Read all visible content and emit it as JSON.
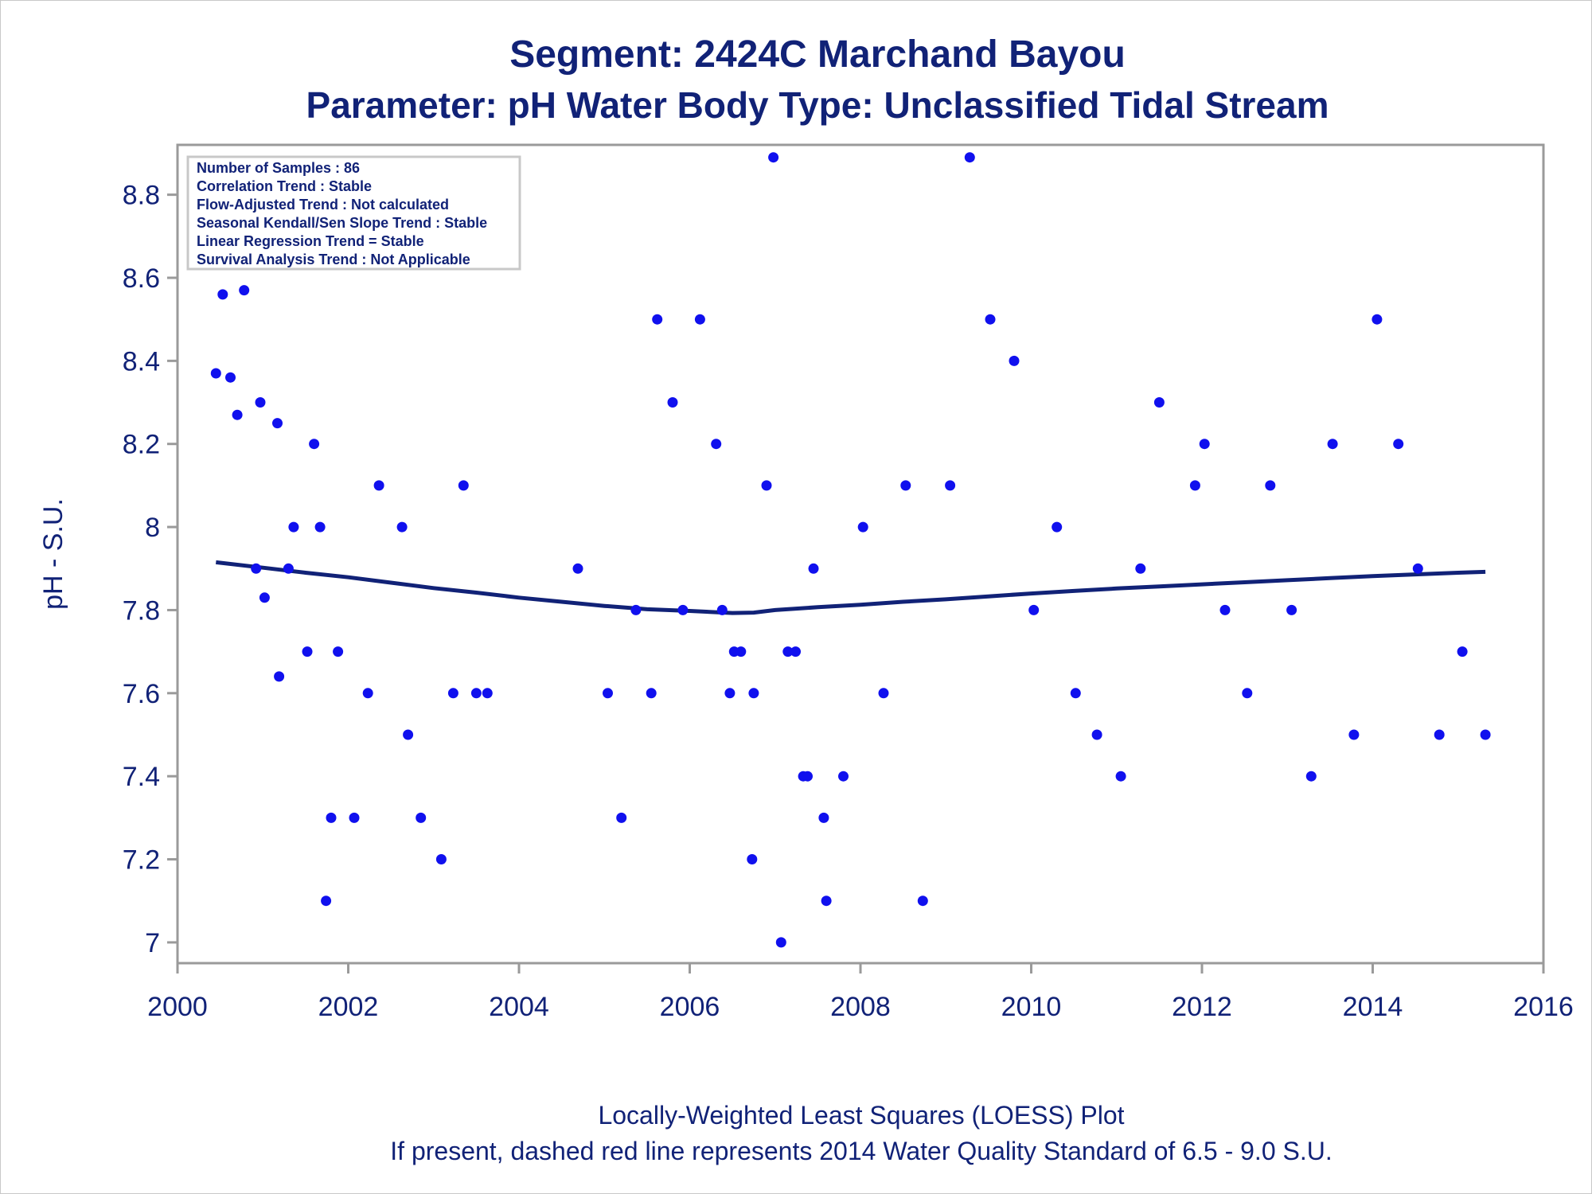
{
  "header": {
    "title": "Segment: 2424C  Marchand Bayou",
    "subtitle": "Parameter: pH   Water Body Type: Unclassified Tidal Stream"
  },
  "stats_box": {
    "lines": [
      "Number of Samples : 86",
      "Correlation Trend : Stable",
      "Flow-Adjusted Trend : Not calculated",
      "Seasonal Kendall/Sen Slope Trend : Stable",
      "Linear Regression Trend = Stable",
      "Survival Analysis Trend : Not Applicable"
    ]
  },
  "footer": {
    "line1": "Locally-Weighted Least Squares (LOESS) Plot",
    "line2": "If present, dashed red line represents 2014 Water Quality Standard of 6.5 - 9.0 S.U."
  },
  "colors": {
    "text": "#112277",
    "points": "#1010ee",
    "loess": "#112277",
    "axis": "#9a9a9a"
  },
  "chart_data": {
    "type": "scatter",
    "title": "Segment: 2424C  Marchand Bayou",
    "subtitle": "Parameter: pH   Water Body Type: Unclassified Tidal Stream",
    "xlabel": "",
    "ylabel": "pH - S.U.",
    "xlim": [
      2000,
      2016
    ],
    "ylim": [
      6.95,
      8.92
    ],
    "x_ticks": [
      2000,
      2002,
      2004,
      2006,
      2008,
      2010,
      2012,
      2014,
      2016
    ],
    "y_ticks": [
      7,
      7.2,
      7.4,
      7.6,
      7.8,
      8,
      8.2,
      8.4,
      8.6,
      8.8
    ],
    "x_tick_labels": [
      "2000",
      "2002",
      "2004",
      "2006",
      "2008",
      "2010",
      "2012",
      "2014",
      "2016"
    ],
    "y_tick_labels": [
      "7",
      "7.2",
      "7.4",
      "7.6",
      "7.8",
      "8",
      "8.2",
      "8.4",
      "8.6",
      "8.8"
    ],
    "grid": false,
    "points": [
      [
        2000.45,
        8.37
      ],
      [
        2000.53,
        8.56
      ],
      [
        2000.62,
        8.36
      ],
      [
        2000.7,
        8.27
      ],
      [
        2000.78,
        8.57
      ],
      [
        2000.92,
        7.9
      ],
      [
        2000.97,
        8.3
      ],
      [
        2001.02,
        7.83
      ],
      [
        2001.17,
        8.25
      ],
      [
        2001.19,
        7.64
      ],
      [
        2001.3,
        7.9
      ],
      [
        2001.36,
        8.0
      ],
      [
        2001.52,
        7.7
      ],
      [
        2001.6,
        8.2
      ],
      [
        2001.67,
        8.0
      ],
      [
        2001.74,
        7.1
      ],
      [
        2001.8,
        7.3
      ],
      [
        2001.88,
        7.7
      ],
      [
        2002.07,
        7.3
      ],
      [
        2002.23,
        7.6
      ],
      [
        2002.36,
        8.1
      ],
      [
        2002.63,
        8.0
      ],
      [
        2002.7,
        7.5
      ],
      [
        2002.85,
        7.3
      ],
      [
        2003.09,
        7.2
      ],
      [
        2003.23,
        7.6
      ],
      [
        2003.35,
        8.1
      ],
      [
        2003.5,
        7.6
      ],
      [
        2003.63,
        7.6
      ],
      [
        2004.69,
        7.9
      ],
      [
        2005.04,
        7.6
      ],
      [
        2005.2,
        7.3
      ],
      [
        2005.37,
        7.8
      ],
      [
        2005.55,
        7.6
      ],
      [
        2005.62,
        8.5
      ],
      [
        2005.8,
        8.3
      ],
      [
        2005.92,
        7.8
      ],
      [
        2006.12,
        8.5
      ],
      [
        2006.31,
        8.2
      ],
      [
        2006.38,
        7.8
      ],
      [
        2006.47,
        7.6
      ],
      [
        2006.52,
        7.7
      ],
      [
        2006.6,
        7.7
      ],
      [
        2006.73,
        7.2
      ],
      [
        2006.75,
        7.6
      ],
      [
        2006.9,
        8.1
      ],
      [
        2006.98,
        8.89
      ],
      [
        2007.07,
        7.0
      ],
      [
        2007.15,
        7.7
      ],
      [
        2007.24,
        7.7
      ],
      [
        2007.33,
        7.4
      ],
      [
        2007.38,
        7.4
      ],
      [
        2007.45,
        7.9
      ],
      [
        2007.57,
        7.3
      ],
      [
        2007.6,
        7.1
      ],
      [
        2007.8,
        7.4
      ],
      [
        2008.03,
        8.0
      ],
      [
        2008.27,
        7.6
      ],
      [
        2008.53,
        8.1
      ],
      [
        2008.73,
        7.1
      ],
      [
        2009.05,
        8.1
      ],
      [
        2009.28,
        8.89
      ],
      [
        2009.52,
        8.5
      ],
      [
        2009.8,
        8.4
      ],
      [
        2010.03,
        7.8
      ],
      [
        2010.3,
        8.0
      ],
      [
        2010.52,
        7.6
      ],
      [
        2010.77,
        7.5
      ],
      [
        2011.05,
        7.4
      ],
      [
        2011.28,
        7.9
      ],
      [
        2011.5,
        8.3
      ],
      [
        2011.92,
        8.1
      ],
      [
        2012.03,
        8.2
      ],
      [
        2012.27,
        7.8
      ],
      [
        2012.53,
        7.6
      ],
      [
        2012.8,
        8.1
      ],
      [
        2013.05,
        7.8
      ],
      [
        2013.28,
        7.4
      ],
      [
        2013.53,
        8.2
      ],
      [
        2013.78,
        7.5
      ],
      [
        2014.05,
        8.5
      ],
      [
        2014.3,
        8.2
      ],
      [
        2014.53,
        7.9
      ],
      [
        2014.78,
        7.5
      ],
      [
        2015.05,
        7.7
      ],
      [
        2015.32,
        7.5
      ]
    ],
    "loess": [
      [
        2000.45,
        7.915
      ],
      [
        2001.0,
        7.902
      ],
      [
        2001.5,
        7.89
      ],
      [
        2002.0,
        7.879
      ],
      [
        2002.5,
        7.866
      ],
      [
        2003.0,
        7.853
      ],
      [
        2003.5,
        7.842
      ],
      [
        2004.0,
        7.83
      ],
      [
        2004.5,
        7.82
      ],
      [
        2005.0,
        7.81
      ],
      [
        2005.5,
        7.802
      ],
      [
        2006.0,
        7.798
      ],
      [
        2006.5,
        7.793
      ],
      [
        2006.75,
        7.794
      ],
      [
        2007.0,
        7.8
      ],
      [
        2007.5,
        7.807
      ],
      [
        2008.0,
        7.813
      ],
      [
        2008.5,
        7.82
      ],
      [
        2009.0,
        7.826
      ],
      [
        2009.5,
        7.833
      ],
      [
        2010.0,
        7.84
      ],
      [
        2010.5,
        7.846
      ],
      [
        2011.0,
        7.852
      ],
      [
        2011.5,
        7.857
      ],
      [
        2012.0,
        7.862
      ],
      [
        2012.5,
        7.867
      ],
      [
        2013.0,
        7.872
      ],
      [
        2013.5,
        7.877
      ],
      [
        2014.0,
        7.882
      ],
      [
        2014.5,
        7.886
      ],
      [
        2015.0,
        7.89
      ],
      [
        2015.32,
        7.892
      ]
    ]
  }
}
